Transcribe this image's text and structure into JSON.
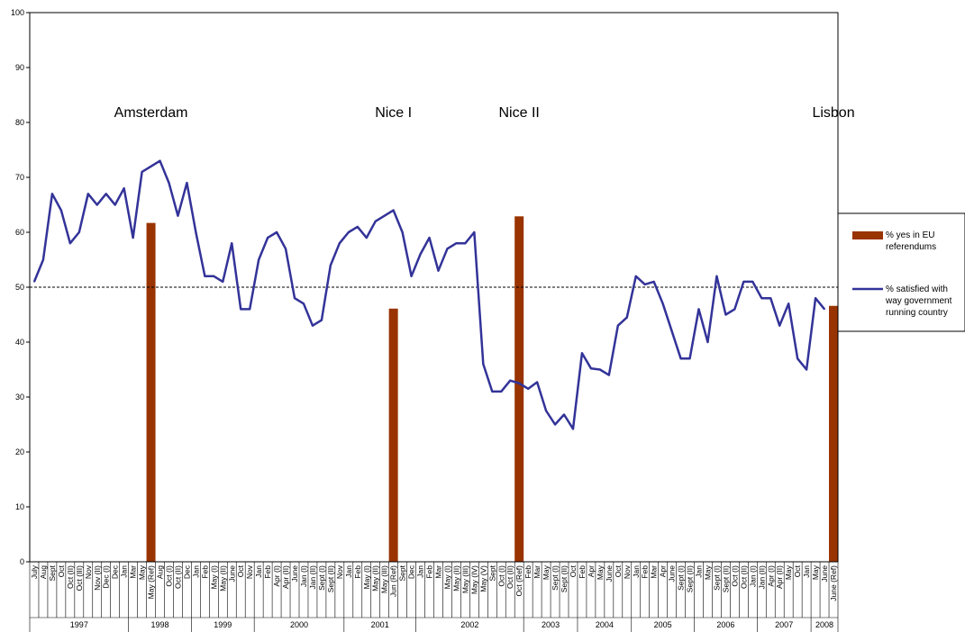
{
  "chart_data": {
    "type": "bar+line",
    "ylim": [
      0,
      100
    ],
    "yticks": [
      "0",
      "10",
      "20",
      "30",
      "40",
      "50",
      "60",
      "70",
      "80",
      "90",
      "100"
    ],
    "reference_line": 50,
    "colors": {
      "line": "#333399",
      "bar": "#993300"
    },
    "legend_position": "right",
    "x": [
      "July",
      "Aug",
      "Sept",
      "Oct",
      "Oct (II)",
      "Oct (III)",
      "Nov",
      "Nov (II)",
      "Dec (I)",
      "Dec",
      "Jan",
      "Mar",
      "May",
      "May (Ref)",
      "Aug",
      "Oct (I)",
      "Oct (II)",
      "Dec",
      "Jan",
      "Feb",
      "May (I)",
      "May (II)",
      "June",
      "Oct",
      "Nov",
      "Jan",
      "Feb",
      "Apr (I)",
      "Apr (II)",
      "June",
      "Jan (I)",
      "Jan (II)",
      "Sept (I)",
      "Sept (II)",
      "Nov",
      "Jan",
      "Feb",
      "May (I)",
      "May (II)",
      "May (III)",
      "Jun (Ref)",
      "Sept",
      "Dec",
      "Jan",
      "Feb",
      "Mar",
      "May (I)",
      "May (II)",
      "May (III)",
      "May (IV)",
      "May (V)",
      "Sept",
      "Oct (I)",
      "Oct (II)",
      "Oct (Ref)",
      "Feb",
      "Mar",
      "May",
      "Sept (I)",
      "Sept (II)",
      "Oct",
      "Feb",
      "Apr",
      "May",
      "June",
      "Oct",
      "Nov",
      "Jan",
      "Feb",
      "Mar",
      "Apr",
      "June",
      "Sept (I)",
      "Sept (II)",
      "Jan",
      "May",
      "Sept (I)",
      "Sept (II)",
      "Oct (I)",
      "Oct (II)",
      "Jan (I)",
      "Jan (II)",
      "Apr (I)",
      "Apr (II)",
      "May",
      "Oct",
      "Jan",
      "May",
      "June",
      "June (Ref)"
    ],
    "years": [
      {
        "label": "1997",
        "count": 11
      },
      {
        "label": "1998",
        "count": 7
      },
      {
        "label": "1999",
        "count": 7
      },
      {
        "label": "2000",
        "count": 10
      },
      {
        "label": "2001",
        "count": 8
      },
      {
        "label": "2002",
        "count": 12
      },
      {
        "label": "2003",
        "count": 6
      },
      {
        "label": "2004",
        "count": 6
      },
      {
        "label": "2005",
        "count": 7
      },
      {
        "label": "2006",
        "count": 7
      },
      {
        "label": "2007",
        "count": 6
      },
      {
        "label": "2008",
        "count": 3
      }
    ],
    "series": [
      {
        "name": "% satisfied with way government running country",
        "type": "line",
        "values": [
          51,
          55,
          67,
          64,
          58,
          60,
          67,
          65,
          67,
          65,
          68,
          59,
          71,
          72,
          73,
          69,
          63,
          69,
          60,
          52,
          52,
          51,
          58,
          46,
          46,
          55,
          59,
          60,
          57,
          48,
          47,
          43,
          44,
          54,
          58,
          60,
          61,
          59,
          62,
          63,
          64,
          60,
          52,
          56,
          59,
          53,
          57,
          58,
          58,
          60,
          36,
          31,
          31,
          33,
          32.5,
          31.5,
          32.7,
          27.5,
          25,
          26.8,
          24.2,
          38,
          35.2,
          35,
          34,
          43,
          44.5,
          52,
          50.5,
          51,
          47,
          42,
          37,
          37,
          46,
          40,
          52,
          45,
          46,
          51,
          51,
          48,
          48,
          43,
          47,
          37,
          35,
          48,
          46,
          null
        ]
      },
      {
        "name": "% yes in EU referendums",
        "type": "bar",
        "bars": [
          {
            "x": "May (Ref)",
            "value": 61.7
          },
          {
            "x": "Jun (Ref)",
            "value": 46.1
          },
          {
            "x": "Oct (Ref)",
            "value": 62.9
          },
          {
            "x": "June (Ref)",
            "value": 46.6
          }
        ]
      }
    ],
    "annotations": [
      {
        "text": "Amsterdam",
        "x": "May (Ref)",
        "y": 81
      },
      {
        "text": "Nice I",
        "x": "Jun (Ref)",
        "y": 81
      },
      {
        "text": "Nice II",
        "x": "Oct (Ref)",
        "y": 81
      },
      {
        "text": "Lisbon",
        "x": "June (Ref)",
        "y": 81
      }
    ]
  }
}
